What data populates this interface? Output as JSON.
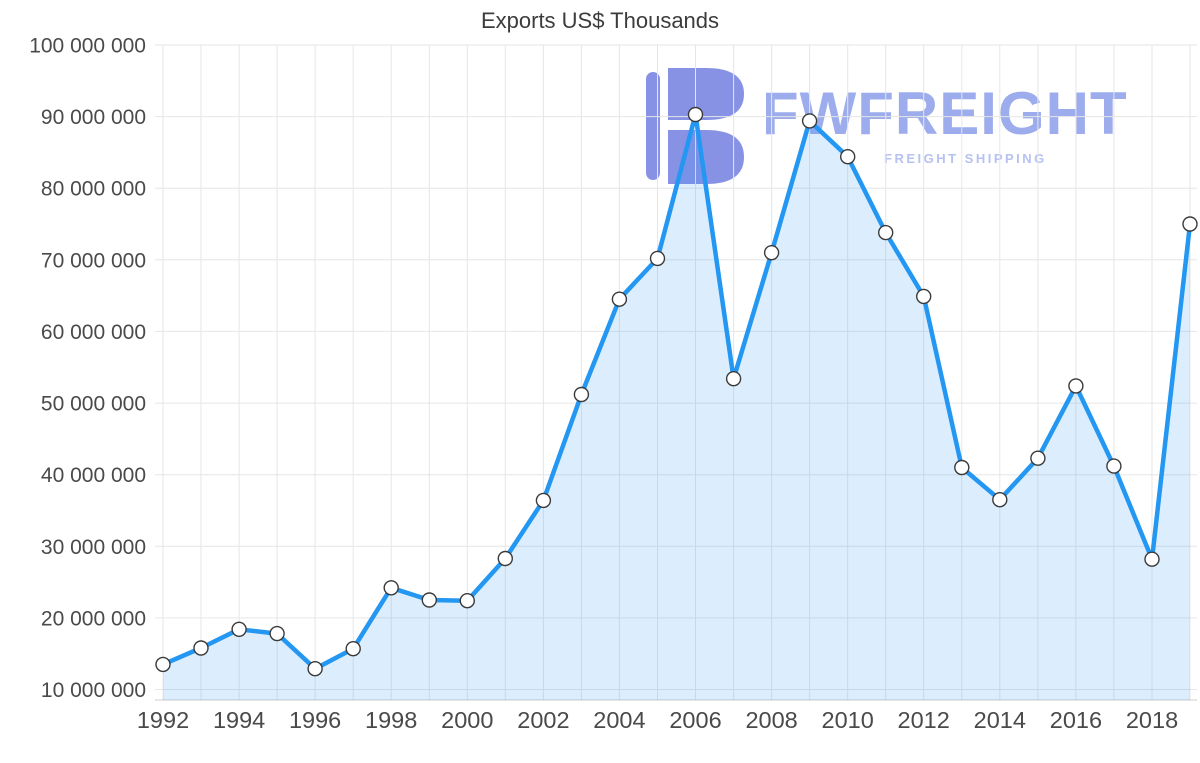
{
  "watermark": {
    "brand": "FWFREIGHT",
    "tagline": "FREIGHT SHIPPING",
    "logo_color": "#7b86e2",
    "brand_color": "#9dacec",
    "tagline_color": "#b6c2f1"
  },
  "chart_data": {
    "type": "area",
    "title": "Exports US$ Thousands",
    "xlabel": "",
    "ylabel": "",
    "x": [
      1992,
      1993,
      1994,
      1995,
      1996,
      1997,
      1998,
      1999,
      2000,
      2001,
      2002,
      2003,
      2004,
      2005,
      2006,
      2007,
      2008,
      2009,
      2010,
      2011,
      2012,
      2013,
      2014,
      2015,
      2016,
      2017,
      2018,
      2019
    ],
    "values": [
      13500000,
      15800000,
      18400000,
      17800000,
      12900000,
      15700000,
      24200000,
      22500000,
      22400000,
      28300000,
      36400000,
      51200000,
      64500000,
      70200000,
      90300000,
      53400000,
      71000000,
      89400000,
      84400000,
      73800000,
      64900000,
      41000000,
      36500000,
      42300000,
      52400000,
      41200000,
      28200000,
      75000000
    ],
    "ylim": [
      10000000,
      100000000
    ],
    "ytick_step": 10000000,
    "ytick_labels": [
      "10 000 000",
      "20 000 000",
      "30 000 000",
      "40 000 000",
      "50 000 000",
      "60 000 000",
      "70 000 000",
      "80 000 000",
      "90 000 000",
      "100 000 000"
    ],
    "xtick_labels": [
      "1992",
      "1994",
      "1996",
      "1998",
      "2000",
      "2002",
      "2004",
      "2006",
      "2008",
      "2010",
      "2012",
      "2014",
      "2016",
      "2018"
    ],
    "grid": true,
    "legend": false,
    "colors": {
      "line": "#2397f2",
      "area_opacity": 0.16,
      "marker_fill": "#ffffff",
      "marker_stroke": "#3a3a3a",
      "grid": "#e6e6e6",
      "axis_line": "#cccccc",
      "axis_text": "#4a4a4a",
      "title_text": "#3c3c3c"
    }
  }
}
